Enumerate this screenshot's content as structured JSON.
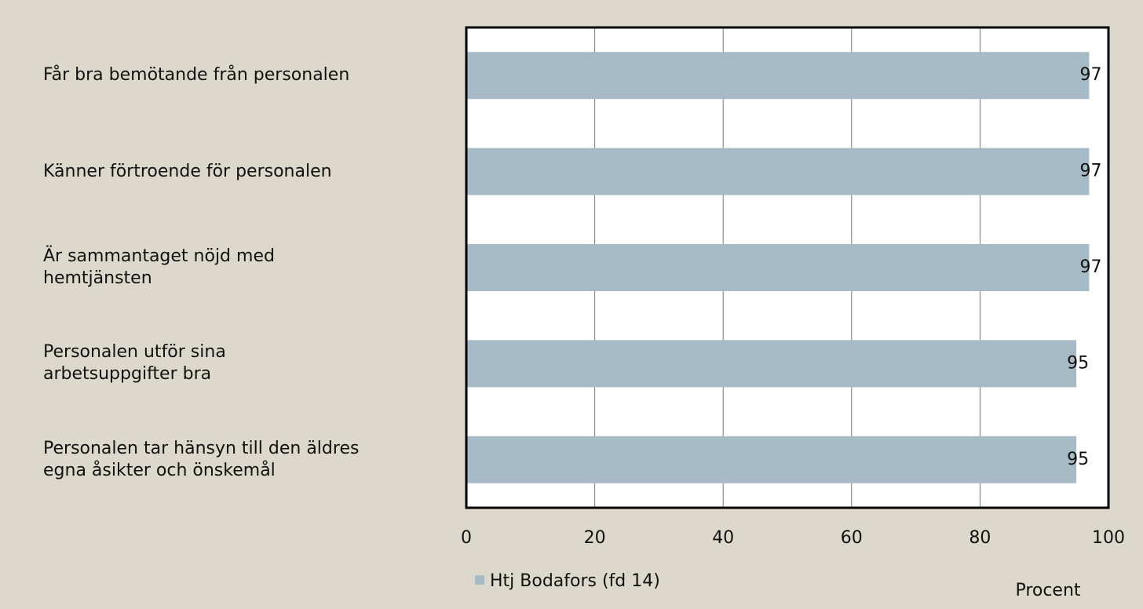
{
  "chart_data": {
    "type": "bar",
    "orientation": "horizontal",
    "categories": [
      "Får bra bemötande från personalen",
      "Känner förtroende för personalen",
      "Är sammantaget nöjd med\nhemtjänsten",
      "Personalen utför sina\narbetsuppgifter bra",
      "Personalen tar hänsyn till den äldres\negna åsikter och önskemål"
    ],
    "series": [
      {
        "name": "Htj Bodafors (fd 14)",
        "color": "#a7bbc7",
        "values": [
          97,
          97,
          97,
          95,
          95
        ]
      }
    ],
    "xlabel": "Procent",
    "xlim": [
      0,
      100
    ],
    "xticks": [
      0,
      20,
      40,
      60,
      80,
      100
    ],
    "grid": true,
    "legend": "bottom"
  }
}
